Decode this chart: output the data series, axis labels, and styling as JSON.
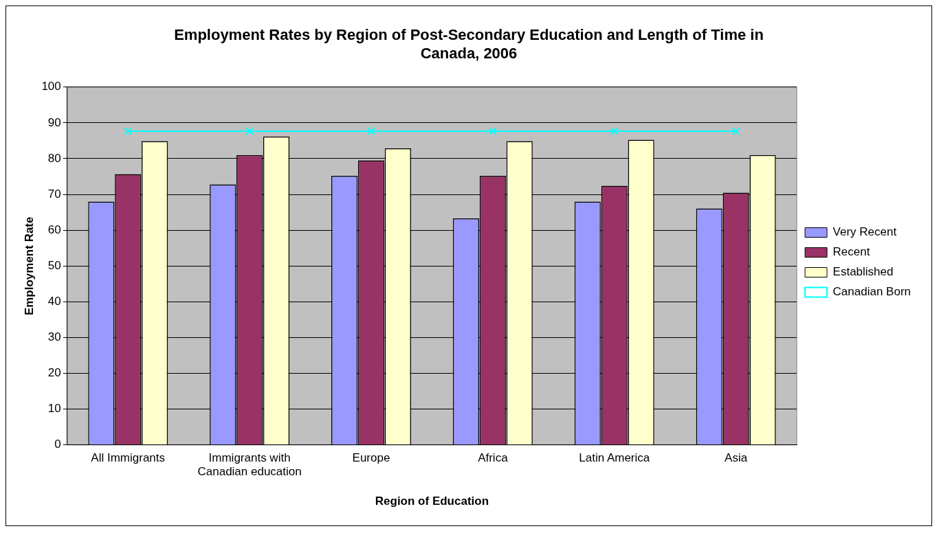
{
  "chart_data": {
    "type": "bar",
    "title": "Employment Rates by Region of Post-Secondary Education and Length of Time in Canada, 2006",
    "xlabel": "Region of Education",
    "ylabel": "Employment Rate",
    "categories": [
      "All Immigrants",
      "Immigrants with Canadian education",
      "Europe",
      "Africa",
      "Latin America",
      "Asia"
    ],
    "series": [
      {
        "name": "Very Recent",
        "color": "#9999ff",
        "values": [
          68.0,
          72.8,
          75.2,
          63.3,
          68.0,
          66.1
        ]
      },
      {
        "name": "Recent",
        "color": "#993366",
        "values": [
          75.7,
          81.0,
          79.5,
          75.2,
          72.4,
          70.5
        ]
      },
      {
        "name": "Established",
        "color": "#ffffcc",
        "values": [
          84.9,
          86.2,
          82.9,
          84.9,
          85.3,
          81.0
        ]
      },
      {
        "name": "Canadian Born",
        "type": "line",
        "color": "#00ffff",
        "marker": "cross",
        "values": [
          87.7,
          87.7,
          87.7,
          87.7,
          87.7,
          87.7
        ]
      }
    ],
    "ylim": [
      0,
      100
    ],
    "yticks": [
      0,
      10,
      20,
      30,
      40,
      50,
      60,
      70,
      80,
      90,
      100
    ],
    "grid": "y",
    "legend": "right"
  }
}
